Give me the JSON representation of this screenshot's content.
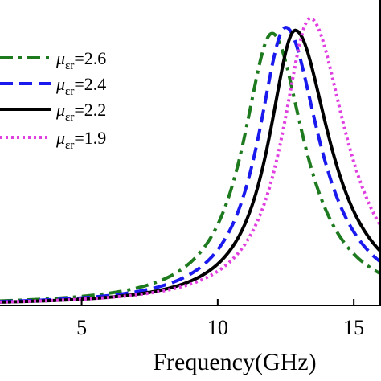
{
  "chart_data": {
    "type": "line",
    "title": "",
    "xlabel": "Frequency(GHz)",
    "ylabel": "",
    "xlim": [
      2,
      16
    ],
    "ylim": [
      0,
      1
    ],
    "xticks": [
      5,
      10,
      15
    ],
    "grid": false,
    "legend_position": "top-left",
    "series": [
      {
        "name": "2.6",
        "label_prefix": "μ",
        "label_sub": "εr",
        "label_eq": "=",
        "color": "#1e7a1e",
        "style": "dash-dot",
        "peak_x": 12.0,
        "peak_y": 0.91,
        "left_width": 1.3,
        "right_width": 1.45
      },
      {
        "name": "2.4",
        "label_prefix": "μ",
        "label_sub": "εr",
        "label_eq": "=",
        "color": "#1a1aee",
        "style": "dashed",
        "peak_x": 12.5,
        "peak_y": 0.93,
        "left_width": 1.25,
        "right_width": 1.5
      },
      {
        "name": "2.2",
        "label_prefix": "μ",
        "label_sub": "εr",
        "label_eq": "=",
        "color": "#000000",
        "style": "solid",
        "peak_x": 12.85,
        "peak_y": 0.92,
        "left_width": 1.2,
        "right_width": 1.55
      },
      {
        "name": "1.9",
        "label_prefix": "μ",
        "label_sub": "εr",
        "label_eq": "=",
        "color": "#e040e0",
        "style": "dotted",
        "peak_x": 13.4,
        "peak_y": 0.96,
        "left_width": 1.25,
        "right_width": 1.6
      }
    ]
  }
}
